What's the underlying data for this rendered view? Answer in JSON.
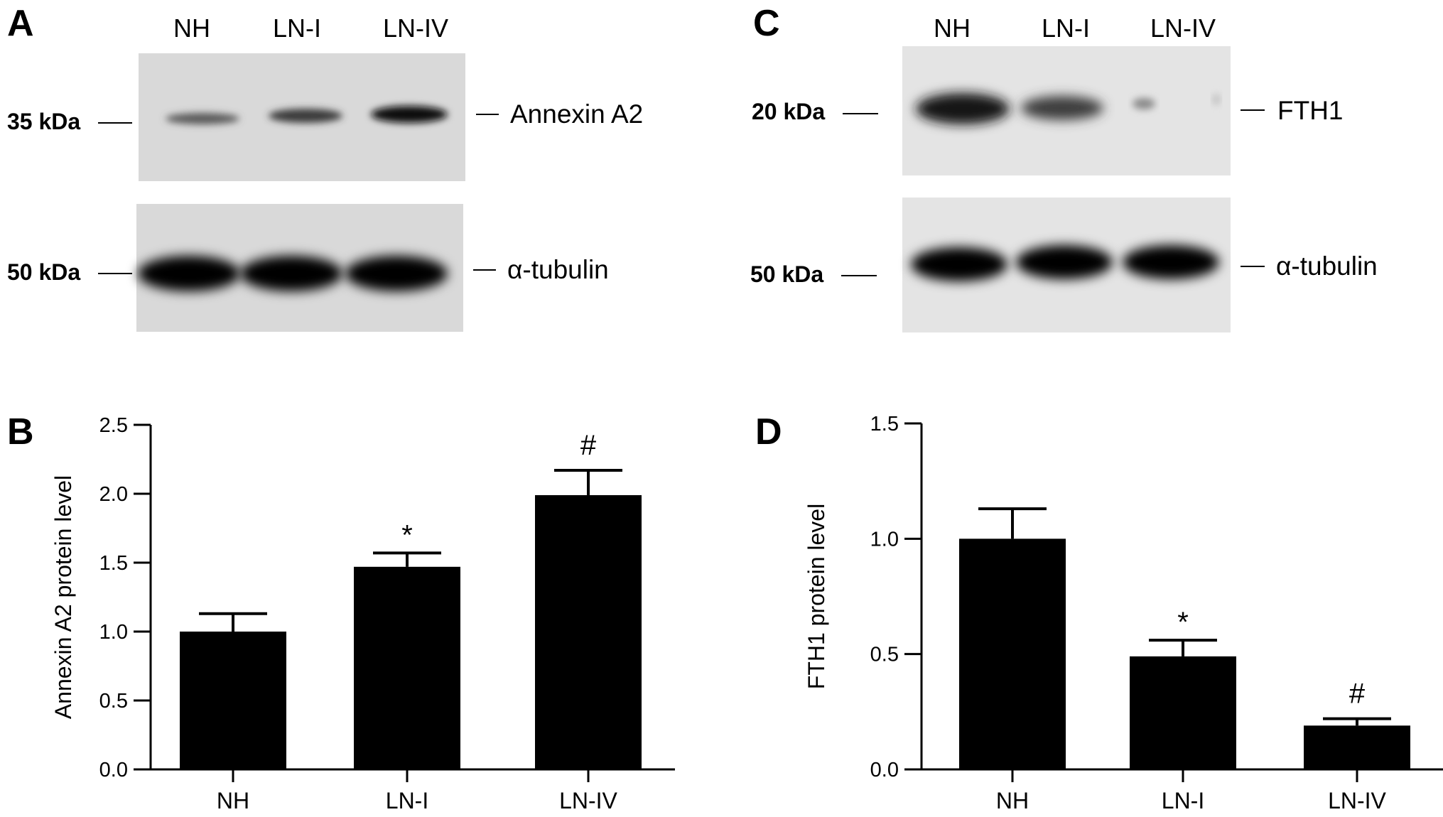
{
  "blots": {
    "A": {
      "letter": "A",
      "lanes": [
        "NH",
        "LN-I",
        "LN-IV"
      ],
      "top": {
        "marker": "35 kDa",
        "protein": "Annexin A2"
      },
      "bottom": {
        "marker": "50 kDa",
        "protein": "α-tubulin"
      }
    },
    "C": {
      "letter": "C",
      "lanes": [
        "NH",
        "LN-I",
        "LN-IV"
      ],
      "top": {
        "marker": "20 kDa",
        "protein": "FTH1"
      },
      "bottom": {
        "marker": "50 kDa",
        "protein": "α-tubulin"
      }
    }
  },
  "chart_data": [
    {
      "panel": "B",
      "type": "bar",
      "categories": [
        "NH",
        "LN-I",
        "LN-IV"
      ],
      "values": [
        1.0,
        1.47,
        1.99
      ],
      "errors": [
        0.13,
        0.1,
        0.18
      ],
      "significance": [
        "",
        "*",
        "#"
      ],
      "ylabel": "Annexin A2 protein level",
      "ylim": [
        0,
        2.5
      ],
      "yticks": [
        "0.0",
        "0.5",
        "1.0",
        "1.5",
        "2.0",
        "2.5"
      ],
      "bar_color": "#000000",
      "grid": false
    },
    {
      "panel": "D",
      "type": "bar",
      "categories": [
        "NH",
        "LN-I",
        "LN-IV"
      ],
      "values": [
        1.0,
        0.49,
        0.19
      ],
      "errors": [
        0.13,
        0.07,
        0.03
      ],
      "significance": [
        "",
        "*",
        "#"
      ],
      "ylabel": "FTH1 protein level",
      "ylim": [
        0,
        1.5
      ],
      "yticks": [
        "0.0",
        "0.5",
        "1.0",
        "1.5"
      ],
      "bar_color": "#000000",
      "grid": false
    }
  ]
}
